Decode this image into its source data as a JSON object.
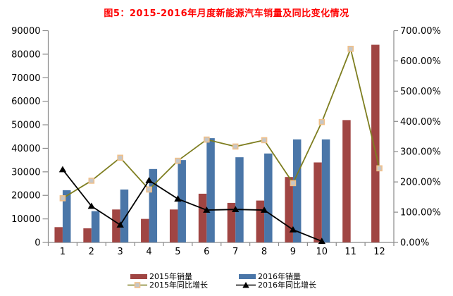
{
  "chart_data": {
    "type": "combo-bar-line",
    "title": "图5：2015-2016年月度新能源汽车销量及同比变化情况",
    "title_color": "#ff0000",
    "categories": [
      "1",
      "2",
      "3",
      "4",
      "5",
      "6",
      "7",
      "8",
      "9",
      "10",
      "11",
      "12"
    ],
    "series": [
      {
        "name": "2015年销量",
        "type": "bar",
        "axis": "left",
        "color": "#a04543",
        "values": [
          6500,
          6000,
          14000,
          10000,
          14000,
          20700,
          16800,
          17800,
          27800,
          34000,
          52000,
          84000
        ]
      },
      {
        "name": "2016年销量",
        "type": "bar",
        "axis": "left",
        "color": "#4a76a8",
        "values": [
          22200,
          13300,
          22500,
          31200,
          35000,
          44300,
          36200,
          37800,
          43800,
          43800,
          null,
          null
        ]
      },
      {
        "name": "2015年同比增长",
        "type": "line",
        "axis": "right",
        "color": "#7e7e20",
        "marker": "square",
        "marker_fill": "#c6c6c6",
        "marker_stroke": "#f0c08a",
        "values_pct": [
          146,
          204,
          280,
          175,
          270,
          340,
          317,
          338,
          196,
          398,
          640,
          245
        ]
      },
      {
        "name": "2016年同比增长",
        "type": "line",
        "axis": "right",
        "color": "#000000",
        "marker": "triangle",
        "marker_fill": "#000000",
        "marker_stroke": "#000000",
        "values_pct": [
          241,
          120,
          58,
          205,
          144,
          107,
          109,
          107,
          42,
          4,
          null,
          null
        ]
      }
    ],
    "left_axis": {
      "min": 0,
      "max": 90000,
      "step": 10000,
      "tick_labels": [
        "0",
        "10000",
        "20000",
        "30000",
        "40000",
        "50000",
        "60000",
        "70000",
        "80000",
        "90000"
      ]
    },
    "right_axis": {
      "min": 0,
      "max": 700,
      "step": 100,
      "tick_labels": [
        "0.00%",
        "100.00%",
        "200.00%",
        "300.00%",
        "400.00%",
        "500.00%",
        "600.00%",
        "700.00%"
      ]
    },
    "axis_color": "#8a8a8a",
    "legend": [
      {
        "label": "2015年销量"
      },
      {
        "label": "2016年销量"
      },
      {
        "label": "2015年同比增长"
      },
      {
        "label": "2016年同比增长"
      }
    ]
  }
}
